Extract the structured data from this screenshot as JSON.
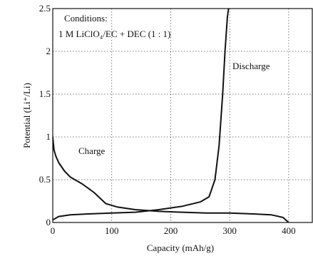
{
  "chart_data": {
    "type": "line",
    "title": "",
    "xlabel": "Capacity (mAh/g)",
    "ylabel": "Potential (Li⁺/Li)",
    "xlim": [
      0,
      440
    ],
    "ylim": [
      0,
      2.5
    ],
    "x_ticks": [
      0,
      100,
      200,
      300,
      400
    ],
    "x_tick_labels": [
      "0",
      "100",
      "200",
      "300",
      "400"
    ],
    "y_ticks": [
      0,
      0.5,
      1,
      1.5,
      2,
      2.5
    ],
    "y_tick_labels": [
      "0",
      "0.5",
      "1",
      "1.5",
      "2",
      "2.5"
    ],
    "grid": true,
    "annotations": {
      "conditions_line1": "Conditions:",
      "conditions_line2": "1 M LiClO₄/EC + DEC (1 : 1)",
      "charge_label": "Charge",
      "discharge_label": "Discharge"
    },
    "series": [
      {
        "label": "Charge",
        "x": [
          0,
          2,
          5,
          10,
          20,
          30,
          50,
          70,
          90,
          110,
          140,
          180,
          220,
          260,
          300,
          340,
          370,
          390,
          400
        ],
        "y": [
          1.0,
          0.85,
          0.78,
          0.7,
          0.6,
          0.53,
          0.45,
          0.35,
          0.22,
          0.18,
          0.15,
          0.13,
          0.12,
          0.11,
          0.11,
          0.1,
          0.09,
          0.06,
          0.0
        ]
      },
      {
        "label": "Discharge",
        "x": [
          0,
          10,
          30,
          60,
          100,
          140,
          180,
          220,
          250,
          265,
          275,
          282,
          288,
          292,
          296,
          300
        ],
        "y": [
          0.03,
          0.07,
          0.09,
          0.1,
          0.11,
          0.12,
          0.15,
          0.19,
          0.24,
          0.3,
          0.5,
          0.9,
          1.5,
          2.0,
          2.4,
          2.6
        ]
      }
    ]
  }
}
